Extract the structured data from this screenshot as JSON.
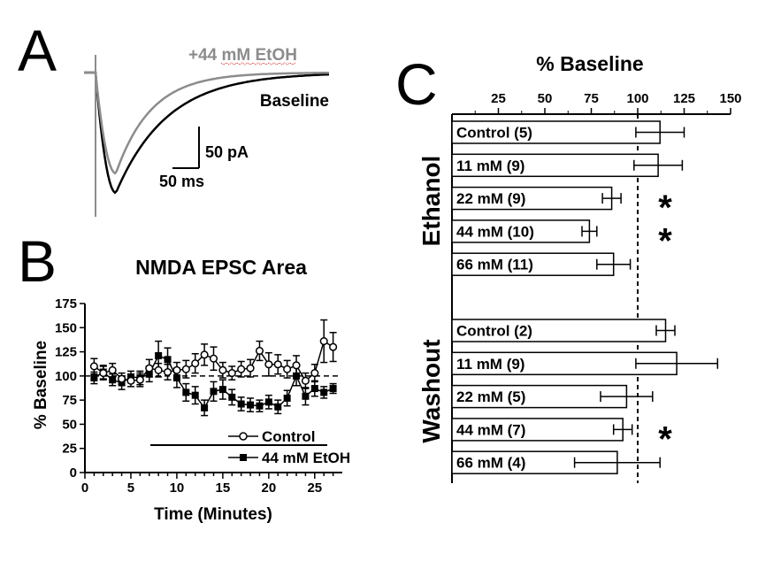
{
  "colors": {
    "baseline": "#000000",
    "ethanol": "#8c8c8c",
    "ink": "#000000"
  },
  "panels": {
    "a": "A",
    "b": "B",
    "c": "C"
  },
  "chart_data": [
    {
      "panel": "A",
      "type": "line",
      "series": [
        {
          "name": "+44 mM EtOH",
          "color": "#8c8c8c"
        },
        {
          "name": "Baseline",
          "color": "#000000"
        }
      ],
      "scale_bar": {
        "y_label": "50 pA",
        "x_label": "50 ms"
      }
    },
    {
      "panel": "B",
      "type": "line",
      "title": "NMDA EPSC Area",
      "xlabel": "Time (Minutes)",
      "ylabel": "% Baseline",
      "xlim": [
        0,
        28
      ],
      "ylim": [
        0,
        175
      ],
      "xticks": [
        "0",
        "5",
        "10",
        "15",
        "20",
        "25"
      ],
      "yticks": [
        "0",
        "25",
        "50",
        "75",
        "100",
        "125",
        "150",
        "175"
      ],
      "reference_line": 100,
      "drug_bar": [
        7,
        27
      ],
      "series": [
        {
          "name": "Control",
          "marker": "open-circle",
          "x": [
            1,
            2,
            3,
            4,
            5,
            6,
            7,
            8,
            9,
            10,
            11,
            12,
            13,
            14,
            15,
            16,
            17,
            18,
            19,
            20,
            21,
            22,
            23,
            24,
            25,
            26,
            27
          ],
          "y": [
            110,
            103,
            106,
            97,
            95,
            96,
            108,
            106,
            104,
            106,
            107,
            113,
            122,
            118,
            106,
            103,
            107,
            108,
            126,
            112,
            112,
            107,
            111,
            95,
            103,
            136,
            130
          ],
          "err": [
            8,
            7,
            7,
            6,
            6,
            7,
            9,
            7,
            8,
            8,
            9,
            10,
            11,
            12,
            8,
            7,
            8,
            9,
            10,
            12,
            10,
            9,
            10,
            8,
            9,
            22,
            15
          ]
        },
        {
          "name": "44 mM EtOH",
          "marker": "filled-square",
          "x": [
            1,
            2,
            3,
            4,
            5,
            6,
            7,
            8,
            9,
            10,
            11,
            12,
            13,
            14,
            15,
            16,
            17,
            18,
            19,
            20,
            21,
            22,
            23,
            24,
            25,
            26,
            27
          ],
          "y": [
            98,
            104,
            96,
            93,
            99,
            98,
            102,
            121,
            117,
            98,
            83,
            80,
            67,
            84,
            86,
            78,
            71,
            70,
            69,
            73,
            68,
            77,
            100,
            79,
            87,
            83,
            87
          ],
          "err": [
            6,
            7,
            6,
            7,
            6,
            7,
            8,
            15,
            12,
            10,
            9,
            9,
            8,
            10,
            10,
            8,
            7,
            7,
            6,
            7,
            7,
            8,
            10,
            9,
            8,
            6,
            5
          ]
        }
      ]
    },
    {
      "panel": "C",
      "type": "bar",
      "orientation": "horizontal",
      "title": "% Baseline",
      "xlim": [
        0,
        150
      ],
      "xticks": [
        "25",
        "50",
        "75",
        "100",
        "125",
        "150"
      ],
      "reference_line": 100,
      "groups": [
        {
          "label": "Ethanol",
          "categories": [
            "Control (5)",
            "11 mM (9)",
            "22 mM (9)",
            "44 mM (10)",
            "66 mM (11)"
          ],
          "values": [
            112,
            111,
            86,
            74,
            87
          ],
          "err": [
            13,
            13,
            5,
            4,
            9
          ],
          "significant": [
            false,
            false,
            true,
            true,
            false
          ]
        },
        {
          "label": "Washout",
          "categories": [
            "Control (2)",
            "11 mM (9)",
            "22 mM (5)",
            "44 mM (7)",
            "66 mM (4)"
          ],
          "values": [
            115,
            121,
            94,
            92,
            89
          ],
          "err": [
            5,
            22,
            14,
            5,
            23
          ],
          "significant": [
            false,
            false,
            false,
            true,
            false
          ]
        }
      ],
      "significance_marker": "*"
    }
  ]
}
